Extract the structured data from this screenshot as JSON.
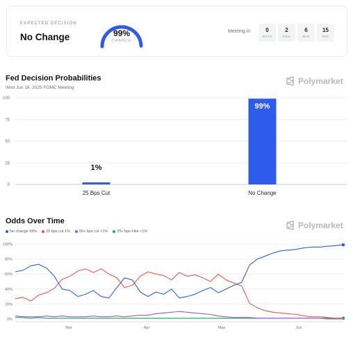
{
  "header": {
    "expected_label": "EXPECTED DECISION",
    "expected_value": "No Change",
    "gauge_value": "99%",
    "gauge_fraction": 0.99,
    "gauge_label": "CHANCE",
    "meeting_label": "Meeting in",
    "countdown": [
      {
        "value": "0",
        "unit": "DAYS"
      },
      {
        "value": "2",
        "unit": "HRS"
      },
      {
        "value": "6",
        "unit": "MIN"
      },
      {
        "value": "15",
        "unit": "SEC"
      }
    ]
  },
  "brand": {
    "name": "Polymarket",
    "color": "#b4b8bf"
  },
  "probabilities": {
    "title": "Fed Decision Probabilities",
    "subtitle": "Wed Jun 18, 2025 FOMC Meeting"
  },
  "odds": {
    "title": "Odds Over Time",
    "legend": [
      {
        "label": "No change 99%",
        "color": "#2d5fd4"
      },
      {
        "label": "25 bps cut 1%",
        "color": "#e05a52"
      },
      {
        "label": "50+ bps cut <1%",
        "color": "#9b59c9"
      },
      {
        "label": "25+ bps hike <1%",
        "color": "#2e9e62"
      }
    ]
  },
  "chart_data": [
    {
      "type": "bar",
      "title": "Fed Decision Probabilities",
      "categories": [
        "25 Bps Cut",
        "No Change"
      ],
      "values": [
        1,
        99
      ],
      "data_labels": [
        "1%",
        "99%"
      ],
      "yticks": [
        "0",
        "25",
        "50",
        "75",
        "100"
      ],
      "ylim": [
        0,
        100
      ],
      "bar_color": "#2f5bea",
      "grid": "horizontal"
    },
    {
      "type": "line",
      "title": "Odds Over Time",
      "xticks": [
        "Mar",
        "Apr",
        "May",
        "Jun"
      ],
      "yticks": [
        "0%",
        "20%",
        "40%",
        "60%",
        "80%",
        "100%"
      ],
      "ylim": [
        0,
        100
      ],
      "grid": "horizontal",
      "series": [
        {
          "name": "No change",
          "color": "#2d5fd4",
          "values": [
            63,
            65,
            71,
            73,
            68,
            57,
            40,
            38,
            30,
            33,
            38,
            30,
            28,
            42,
            55,
            52,
            36,
            30,
            36,
            33,
            40,
            28,
            30,
            33,
            38,
            42,
            35,
            40,
            45,
            49,
            72,
            80,
            84,
            88,
            91,
            92,
            93,
            95,
            96,
            96,
            97,
            98,
            99
          ]
        },
        {
          "name": "25 bps cut",
          "color": "#e05a52",
          "values": [
            27,
            29,
            24,
            32,
            35,
            41,
            53,
            57,
            64,
            67,
            62,
            67,
            60,
            55,
            42,
            45,
            57,
            63,
            60,
            58,
            52,
            62,
            57,
            59,
            55,
            50,
            60,
            52,
            48,
            44,
            21,
            15,
            11,
            9,
            8,
            7,
            6,
            4,
            3,
            3,
            2,
            1,
            1
          ]
        },
        {
          "name": "50+ bps cut",
          "color": "#9b59c9",
          "values": [
            4,
            3,
            3,
            3,
            4,
            3,
            4,
            3,
            3,
            3,
            4,
            3,
            3,
            4,
            3,
            4,
            5,
            5,
            7,
            8,
            9,
            10,
            9,
            8,
            7,
            6,
            4,
            3,
            2,
            2,
            2,
            1,
            1,
            1,
            1,
            1,
            1,
            1,
            1,
            1,
            0,
            0,
            0
          ]
        },
        {
          "name": "25+ bps hike",
          "color": "#2e9e62",
          "values": [
            2,
            2,
            1,
            2,
            1,
            1,
            1,
            1,
            1,
            1,
            1,
            1,
            1,
            1,
            1,
            1,
            1,
            1,
            1,
            1,
            1,
            1,
            1,
            1,
            1,
            1,
            1,
            1,
            1,
            1,
            1,
            1,
            1,
            1,
            1,
            1,
            1,
            1,
            1,
            1,
            1,
            1,
            1
          ]
        }
      ]
    }
  ]
}
